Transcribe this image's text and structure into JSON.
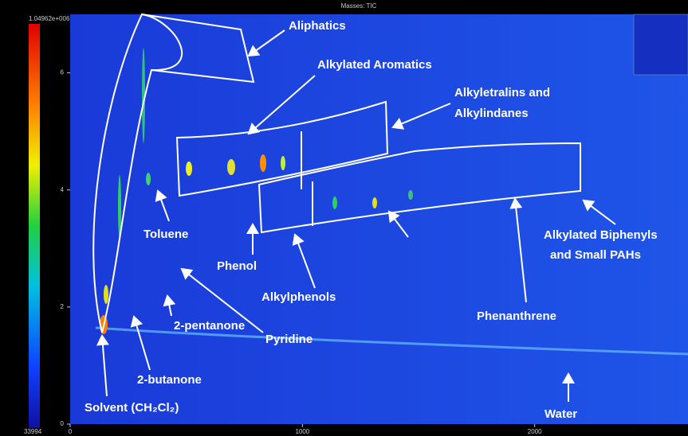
{
  "chart_data": {
    "type": "heatmap",
    "title": "Masses: TIC",
    "colorbar": {
      "max_label": "1.04962e+006",
      "min_label": "33994"
    },
    "xlim": [
      0,
      2660
    ],
    "xticks": [
      0,
      1000,
      2000
    ],
    "ylim": [
      0,
      7
    ],
    "yticks": [
      0,
      2,
      4,
      6
    ],
    "annotations": [
      "Aliphatics",
      "Alkylated Aromatics",
      "Alkyletralins and",
      "Alkylindanes",
      "Toluene",
      "Phenol",
      "Alkylphenols",
      "2-pentanone",
      "Pyridine",
      "2-butanone",
      "Solvent (CH₂Cl₂)",
      "Phenanthrene",
      "Alkylated Biphenyls",
      "and Small PAHs",
      "Water"
    ]
  }
}
